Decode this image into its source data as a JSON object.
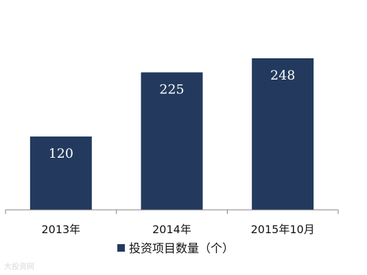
{
  "chart_data": {
    "type": "bar",
    "categories": [
      "2013年",
      "2014年",
      "2015年10月"
    ],
    "series": [
      {
        "name": "投资项目数量（个）",
        "values": [
          120,
          225,
          248
        ]
      }
    ],
    "data_labels": [
      "120",
      "225",
      "248"
    ],
    "ylim": [
      0,
      248
    ],
    "grid": false,
    "legend_position": "bottom",
    "colors": {
      "bar": "#233A5E",
      "axis": "#7f7f7f",
      "text": "#111111",
      "label": "#ffffff"
    }
  },
  "watermark": "大投资网"
}
